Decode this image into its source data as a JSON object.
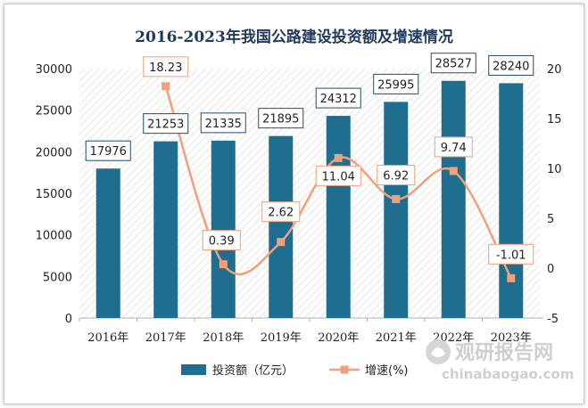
{
  "chart_data": {
    "type": "bar",
    "title": "2016-2023年我国公路建设投资额及增速情况",
    "categories": [
      "2016年",
      "2017年",
      "2018年",
      "2019年",
      "2020年",
      "2021年",
      "2022年",
      "2023年"
    ],
    "series": [
      {
        "name": "投资额（亿元）",
        "type": "bar",
        "axis": "left",
        "values": [
          17976,
          21253,
          21335,
          21895,
          24312,
          25995,
          28527,
          28240
        ],
        "color": "#1f6e8f"
      },
      {
        "name": "增速(%)",
        "type": "line",
        "axis": "right",
        "smooth": true,
        "values": [
          null,
          18.23,
          0.39,
          2.62,
          11.04,
          6.92,
          9.74,
          -1.01
        ],
        "color": "#f0a07a"
      }
    ],
    "y_left": {
      "ylim": [
        0,
        30000
      ],
      "ticks": [
        0,
        5000,
        10000,
        15000,
        20000,
        25000,
        30000
      ]
    },
    "y_right": {
      "ylim": [
        -5,
        20
      ],
      "ticks": [
        -5,
        0,
        5,
        10,
        15,
        20
      ]
    },
    "legend_position": "bottom",
    "plot_background": "diagonal-hatch"
  },
  "watermark": {
    "cn": "观研报告网",
    "en": "chinabaogao.com"
  }
}
